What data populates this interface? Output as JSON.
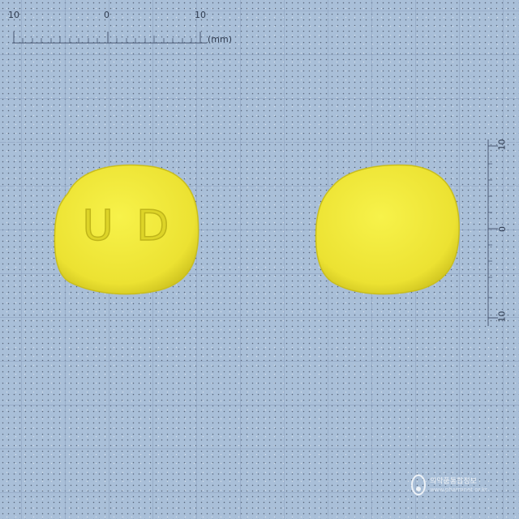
{
  "top_ruler": {
    "labels": [
      "10",
      "0",
      "10"
    ],
    "unit": "(mm)"
  },
  "right_ruler": {
    "labels": [
      "10",
      "0",
      "10"
    ]
  },
  "pill_front": {
    "imprint": "U D",
    "color": "#f1ea3a"
  },
  "pill_back": {
    "color": "#f1ea3a"
  },
  "watermark": {
    "name": "의약품통합정보",
    "url": "www.pharmnet.or.kr"
  }
}
